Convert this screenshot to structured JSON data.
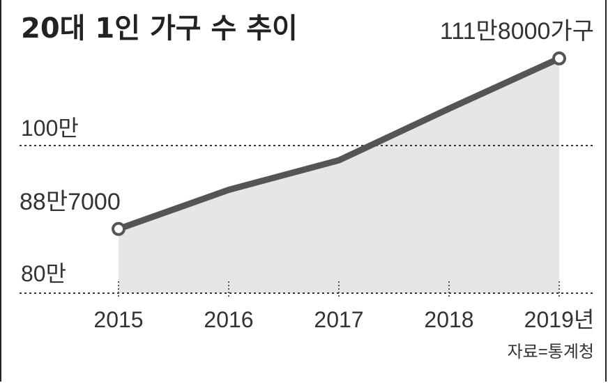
{
  "chart_data": {
    "type": "area",
    "title": "20대 1인 가구 수 추이",
    "source": "자료=통계청",
    "categories": [
      "2015",
      "2016",
      "2017",
      "2018",
      "2019년"
    ],
    "series": [
      {
        "values": [
          887000,
          940000,
          980000,
          1050000,
          1118000
        ]
      }
    ],
    "annotations": {
      "start": "88만7000",
      "end": "111만8000가구"
    },
    "y_ticks": [
      {
        "value": 800000,
        "label": "80만"
      },
      {
        "value": 1000000,
        "label": "100만"
      }
    ],
    "ylim": [
      800000,
      1120000
    ],
    "grid": "dotted horizontal lines at 80만 and 100만",
    "colors": {
      "line": "#555555",
      "area": "#e6e6e9",
      "grid": "#333333"
    }
  }
}
